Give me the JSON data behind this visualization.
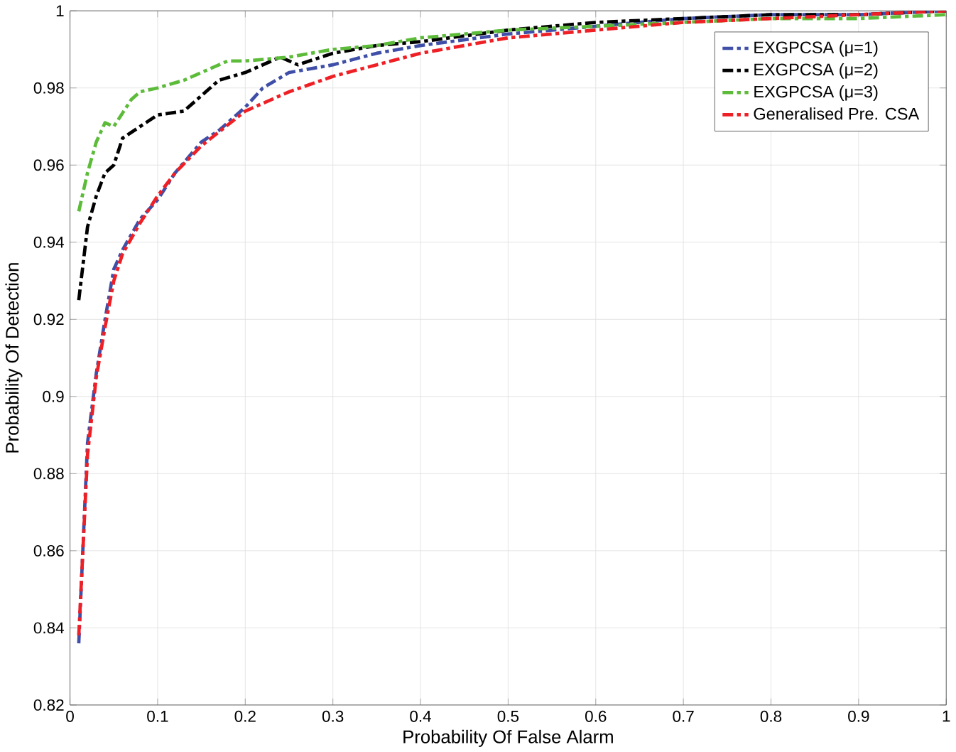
{
  "chart_data": {
    "type": "line",
    "xlabel": "Probability Of False Alarm",
    "ylabel": "Probability Of Detection",
    "xlim": [
      0,
      1
    ],
    "ylim": [
      0.82,
      1
    ],
    "xticks": [
      0,
      0.1,
      0.2,
      0.3,
      0.4,
      0.5,
      0.6,
      0.7,
      0.8,
      0.9,
      1
    ],
    "yticks": [
      0.82,
      0.84,
      0.86,
      0.88,
      0.9,
      0.92,
      0.94,
      0.96,
      0.98,
      1
    ],
    "grid": true,
    "legend": "top right",
    "line_style": "dashed",
    "marker": "none",
    "series": [
      {
        "name": "EXGPCSA (μ=1)",
        "color": "#3f4fa8",
        "x": [
          0.01,
          0.02,
          0.03,
          0.04,
          0.05,
          0.06,
          0.08,
          0.1,
          0.12,
          0.15,
          0.17,
          0.2,
          0.22,
          0.25,
          0.3,
          0.35,
          0.4,
          0.5,
          0.6,
          0.7,
          0.8,
          0.9,
          1
        ],
        "values": [
          0.836,
          0.888,
          0.906,
          0.92,
          0.933,
          0.938,
          0.946,
          0.951,
          0.958,
          0.966,
          0.969,
          0.975,
          0.98,
          0.984,
          0.986,
          0.989,
          0.991,
          0.994,
          0.996,
          0.998,
          0.999,
          0.999,
          1
        ]
      },
      {
        "name": "EXGPCSA  (μ=2)",
        "color": "#000000",
        "x": [
          0.01,
          0.02,
          0.03,
          0.04,
          0.05,
          0.06,
          0.08,
          0.1,
          0.13,
          0.15,
          0.17,
          0.2,
          0.22,
          0.24,
          0.26,
          0.3,
          0.35,
          0.4,
          0.5,
          0.6,
          0.7,
          0.8,
          0.9,
          1
        ],
        "values": [
          0.925,
          0.944,
          0.952,
          0.958,
          0.96,
          0.967,
          0.97,
          0.973,
          0.974,
          0.978,
          0.982,
          0.984,
          0.986,
          0.988,
          0.986,
          0.989,
          0.991,
          0.992,
          0.995,
          0.997,
          0.998,
          0.999,
          0.999,
          1
        ]
      },
      {
        "name": "EXGPCSA (μ=3)",
        "color": "#5dbb3a",
        "x": [
          0.01,
          0.02,
          0.03,
          0.04,
          0.05,
          0.07,
          0.08,
          0.1,
          0.13,
          0.15,
          0.18,
          0.2,
          0.25,
          0.3,
          0.35,
          0.4,
          0.5,
          0.6,
          0.7,
          0.8,
          0.9,
          1
        ],
        "values": [
          0.948,
          0.958,
          0.966,
          0.971,
          0.97,
          0.977,
          0.979,
          0.98,
          0.982,
          0.984,
          0.987,
          0.987,
          0.988,
          0.99,
          0.991,
          0.993,
          0.995,
          0.996,
          0.997,
          0.998,
          0.998,
          0.999
        ]
      },
      {
        "name": "Generalised Pre. CSA",
        "color": "#ee2026",
        "x": [
          0.01,
          0.02,
          0.03,
          0.04,
          0.05,
          0.06,
          0.08,
          0.1,
          0.12,
          0.15,
          0.2,
          0.25,
          0.3,
          0.35,
          0.4,
          0.5,
          0.6,
          0.7,
          0.8,
          0.9,
          1
        ],
        "values": [
          0.838,
          0.885,
          0.905,
          0.918,
          0.93,
          0.937,
          0.945,
          0.952,
          0.958,
          0.965,
          0.974,
          0.979,
          0.983,
          0.986,
          0.989,
          0.993,
          0.995,
          0.997,
          0.998,
          0.999,
          1
        ]
      }
    ]
  }
}
